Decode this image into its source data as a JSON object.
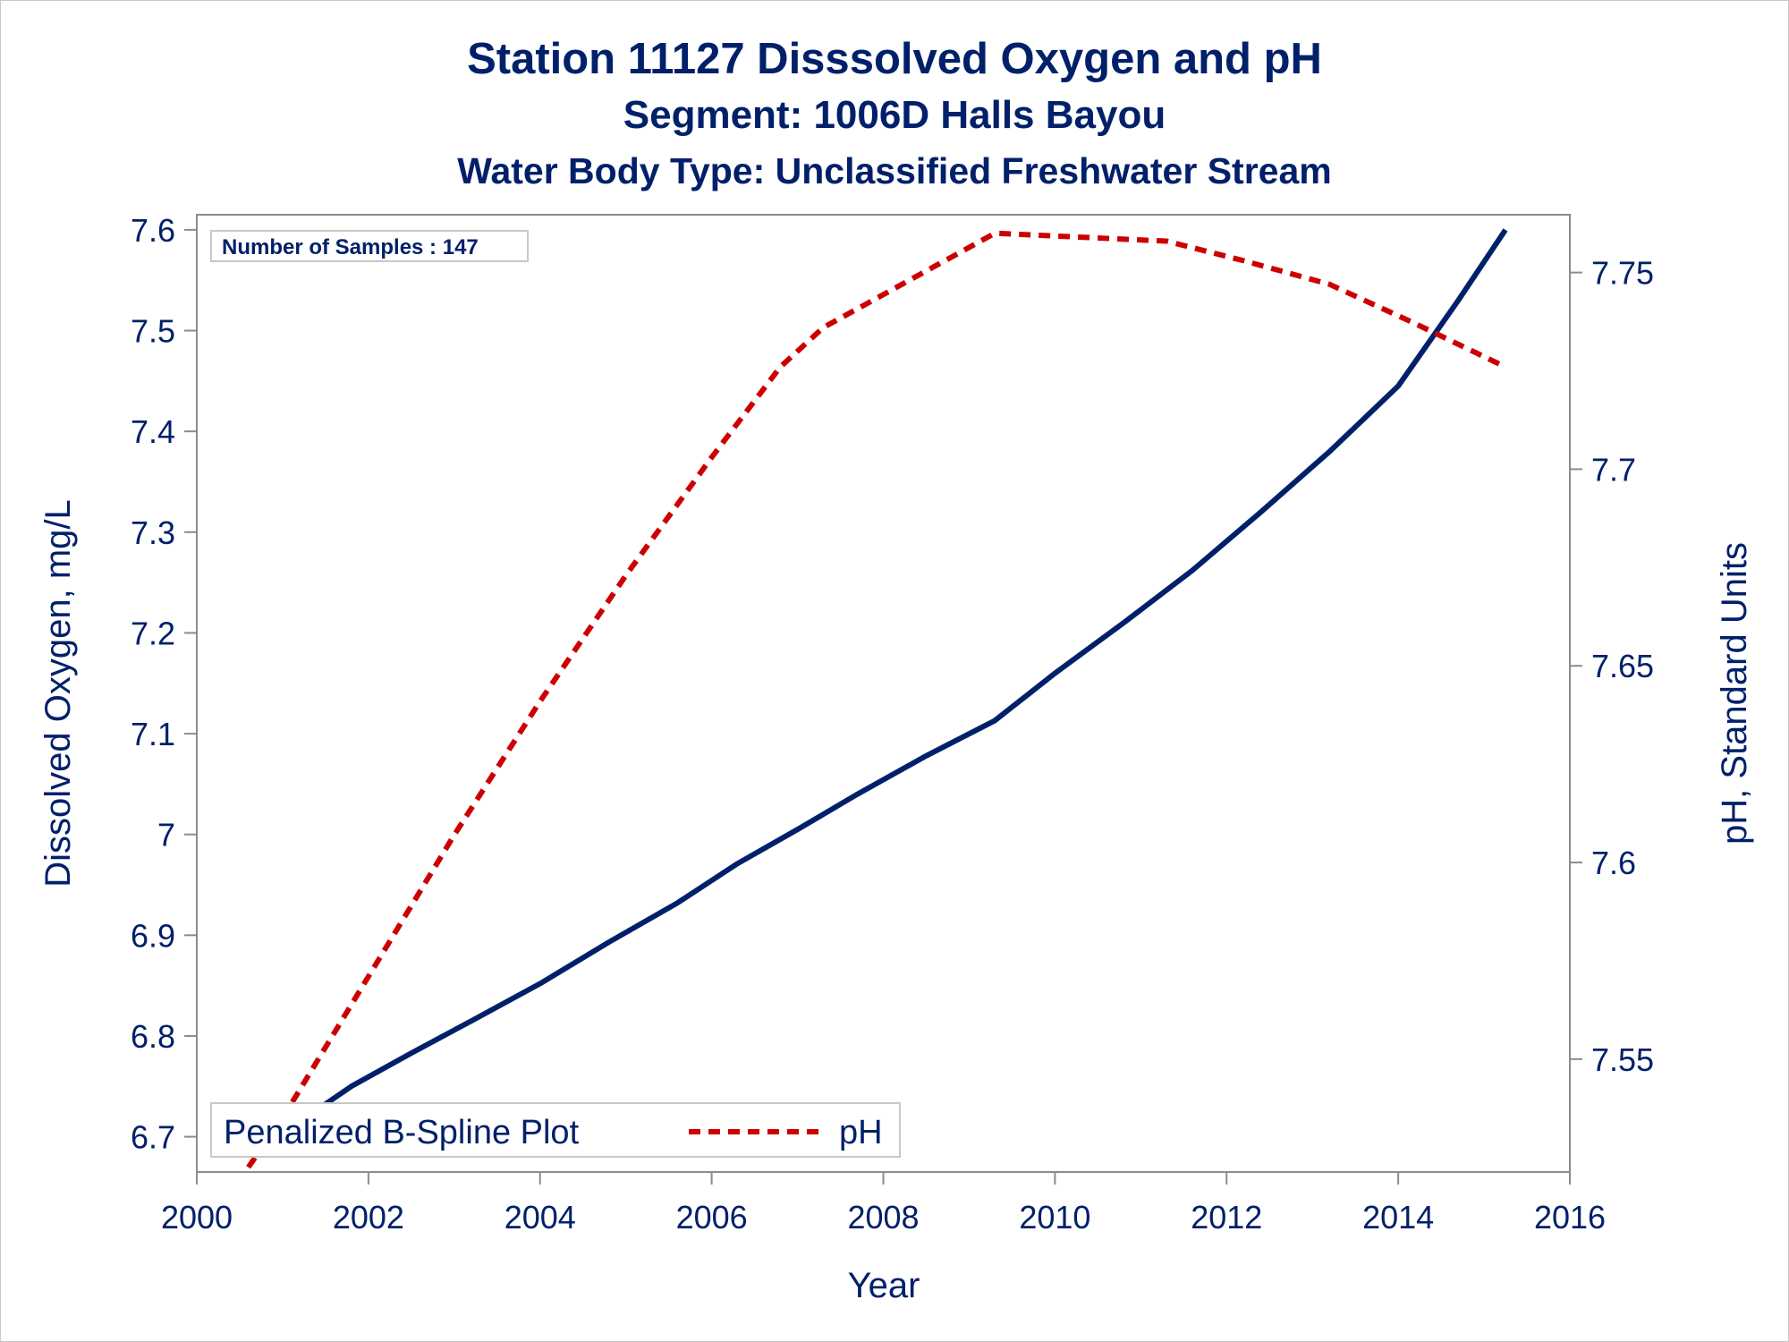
{
  "titles": {
    "line1": "Station 11127   Disssolved Oxygen and pH",
    "line2": "Segment: 1006D  Halls Bayou",
    "line3": "Water Body Type: Unclassified Freshwater Stream"
  },
  "inset": {
    "samples_label": "Number of Samples : 147"
  },
  "legend": {
    "items": [
      {
        "label": "Penalized B-Spline Plot",
        "style": "none"
      },
      {
        "label": "pH",
        "style": "dashed",
        "color": "#cc0000"
      }
    ]
  },
  "colors": {
    "dissolved_oxygen": "#00206a",
    "ph": "#cc0000",
    "axis": "#8c8c8c",
    "text": "#00206a"
  },
  "chart_data": {
    "type": "line",
    "xlabel": "Year",
    "ylabel": "Dissolved Oxygen, mg/L",
    "y2label": "pH, Standard Units",
    "xlim": [
      2000,
      2016
    ],
    "ylim": [
      6.665,
      7.615
    ],
    "y2lim": [
      7.5213,
      7.7647
    ],
    "x_ticks": [
      2000,
      2002,
      2004,
      2006,
      2008,
      2010,
      2012,
      2014,
      2016
    ],
    "y_ticks": [
      6.7,
      6.8,
      6.9,
      7.0,
      7.1,
      7.2,
      7.3,
      7.4,
      7.5,
      7.6
    ],
    "y_tick_labels": [
      "6.7",
      "6.8",
      "6.9",
      "7",
      "7.1",
      "7.2",
      "7.3",
      "7.4",
      "7.5",
      "7.6"
    ],
    "y2_ticks": [
      7.55,
      7.6,
      7.65,
      7.7,
      7.75
    ],
    "y2_tick_labels": [
      "7.55",
      "7.6",
      "7.65",
      "7.7",
      "7.75"
    ],
    "grid": false,
    "legend_position": "bottom-left",
    "series": [
      {
        "axis": "y",
        "color": "#00206a",
        "dash": false,
        "x": [
          2000.6,
          2001.2,
          2001.8,
          2002.5,
          2003.2,
          2004.0,
          2004.8,
          2005.6,
          2006.3,
          2007.0,
          2007.7,
          2008.5,
          2009.3,
          2010.0,
          2010.8,
          2011.6,
          2012.4,
          2013.2,
          2014.0,
          2014.7,
          2015.25
        ],
        "values": [
          6.683,
          6.715,
          6.75,
          6.783,
          6.815,
          6.852,
          6.893,
          6.932,
          6.971,
          7.005,
          7.04,
          7.078,
          7.113,
          7.16,
          7.21,
          7.262,
          7.32,
          7.38,
          7.445,
          7.53,
          7.6
        ]
      },
      {
        "name": "pH",
        "axis": "y2",
        "color": "#cc0000",
        "dash": true,
        "x": [
          2000.6,
          2001.0,
          2002.0,
          2003.0,
          2004.0,
          2005.0,
          2006.0,
          2006.8,
          2007.3,
          2008.3,
          2009.3,
          2010.3,
          2011.3,
          2012.2,
          2013.2,
          2014.2,
          2015.25
        ],
        "values": [
          7.5225,
          7.535,
          7.571,
          7.607,
          7.641,
          7.673,
          7.703,
          7.726,
          7.736,
          7.748,
          7.76,
          7.759,
          7.758,
          7.753,
          7.747,
          7.737,
          7.726
        ]
      }
    ]
  }
}
